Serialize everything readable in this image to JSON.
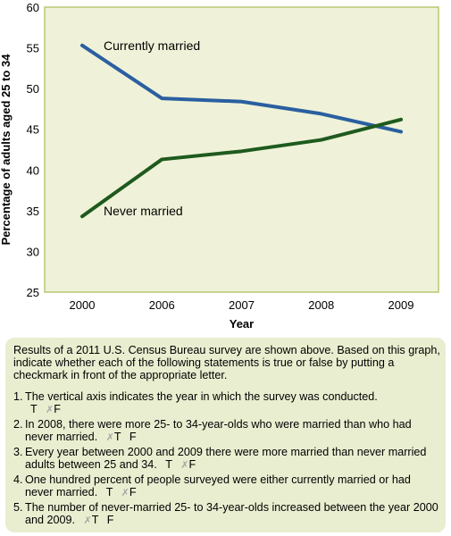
{
  "chart_data": {
    "type": "line",
    "categories": [
      "2000",
      "2006",
      "2007",
      "2008",
      "2009"
    ],
    "series": [
      {
        "name": "Currently married",
        "values": [
          55.3,
          48.8,
          48.4,
          46.9,
          44.7
        ],
        "color": "#2a5fa0"
      },
      {
        "name": "Never married",
        "values": [
          34.3,
          41.3,
          42.3,
          43.7,
          46.2
        ],
        "color": "#1e5a1e"
      }
    ],
    "ylabel": "Percentage of adults aged 25 to 34",
    "xlabel": "Year",
    "ylim": [
      25,
      60
    ],
    "yticks": [
      25,
      30,
      35,
      40,
      45,
      50,
      55,
      60
    ],
    "grid": false,
    "plot_background": "#eff2d8",
    "plot_border": "#b8c870"
  },
  "quiz": {
    "intro": "Results of a 2011 U.S. Census Bureau survey are shown above. Based on this graph, indicate whether each of the following statements is true or false by putting a checkmark in front of the appropriate letter.",
    "mark_symbol": "✗",
    "items": [
      {
        "number": "1.",
        "text": "The vertical axis indicates the year in which the survey was conducted.",
        "t": "T",
        "f": "F",
        "marked": "F"
      },
      {
        "number": "2.",
        "text": "In 2008, there were more 25- to 34-year-olds who were married than who had never married.",
        "t": "T",
        "f": "F",
        "marked": "T"
      },
      {
        "number": "3.",
        "text": "Every year between 2000 and 2009 there were more married than never married adults between 25 and 34.",
        "t": "T",
        "f": "F",
        "marked": "F"
      },
      {
        "number": "4.",
        "text": "One hundred percent of people surveyed were either currently married or had never married.",
        "t": "T",
        "f": "F",
        "marked": "F"
      },
      {
        "number": "5.",
        "text": "The number of never-married 25- to 34-year-olds increased between the year 2000 and 2009.",
        "t": "T",
        "f": "F",
        "marked": "T"
      }
    ]
  }
}
